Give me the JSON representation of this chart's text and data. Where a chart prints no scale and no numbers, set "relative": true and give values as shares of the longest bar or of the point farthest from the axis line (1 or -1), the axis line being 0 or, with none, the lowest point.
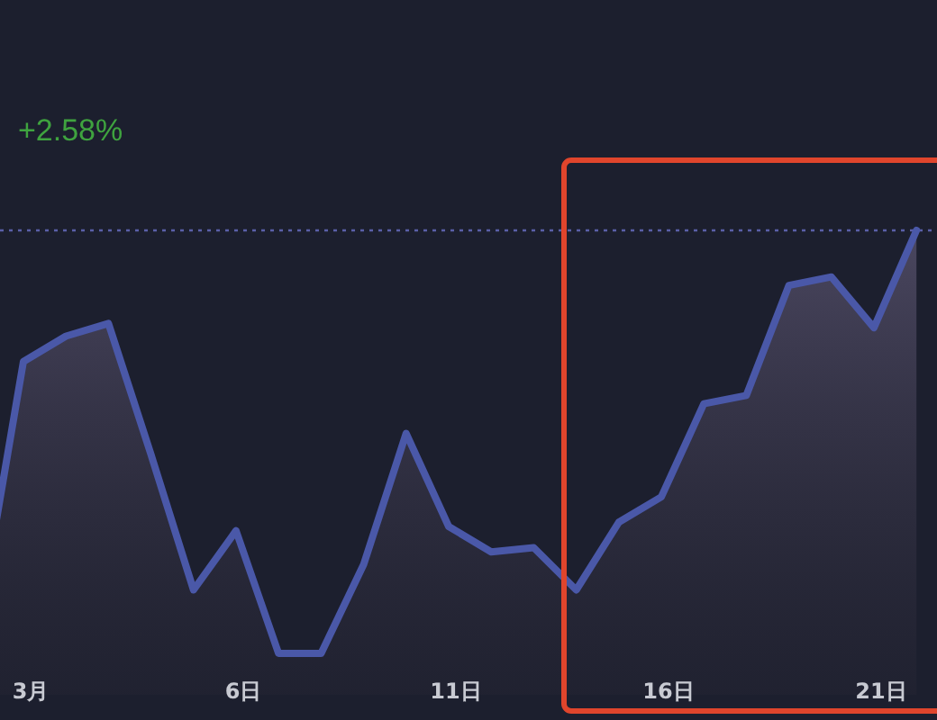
{
  "chart_data": {
    "type": "area",
    "relative": true,
    "categories": [
      null,
      "3月",
      null,
      null,
      null,
      null,
      "6日",
      null,
      null,
      null,
      null,
      "11日",
      null,
      null,
      null,
      null,
      "16日",
      null,
      null,
      null,
      null,
      "21日",
      null
    ],
    "series": [
      {
        "color": "#4a58a8",
        "values": [
          0.1,
          0.69,
          0.75,
          0.78,
          0.47,
          0.15,
          0.29,
          0,
          0,
          0.21,
          0.52,
          0.3,
          0.24,
          0.25,
          0.15,
          0.31,
          0.37,
          0.59,
          0.61,
          0.87,
          0.89,
          0.77,
          1
        ]
      }
    ],
    "ref_lines": [
      {
        "axis": "y",
        "value": 1,
        "color": "#5a5fa8",
        "line_style": "dotted"
      }
    ],
    "annotations": [
      "+2.58%"
    ]
  }
}
